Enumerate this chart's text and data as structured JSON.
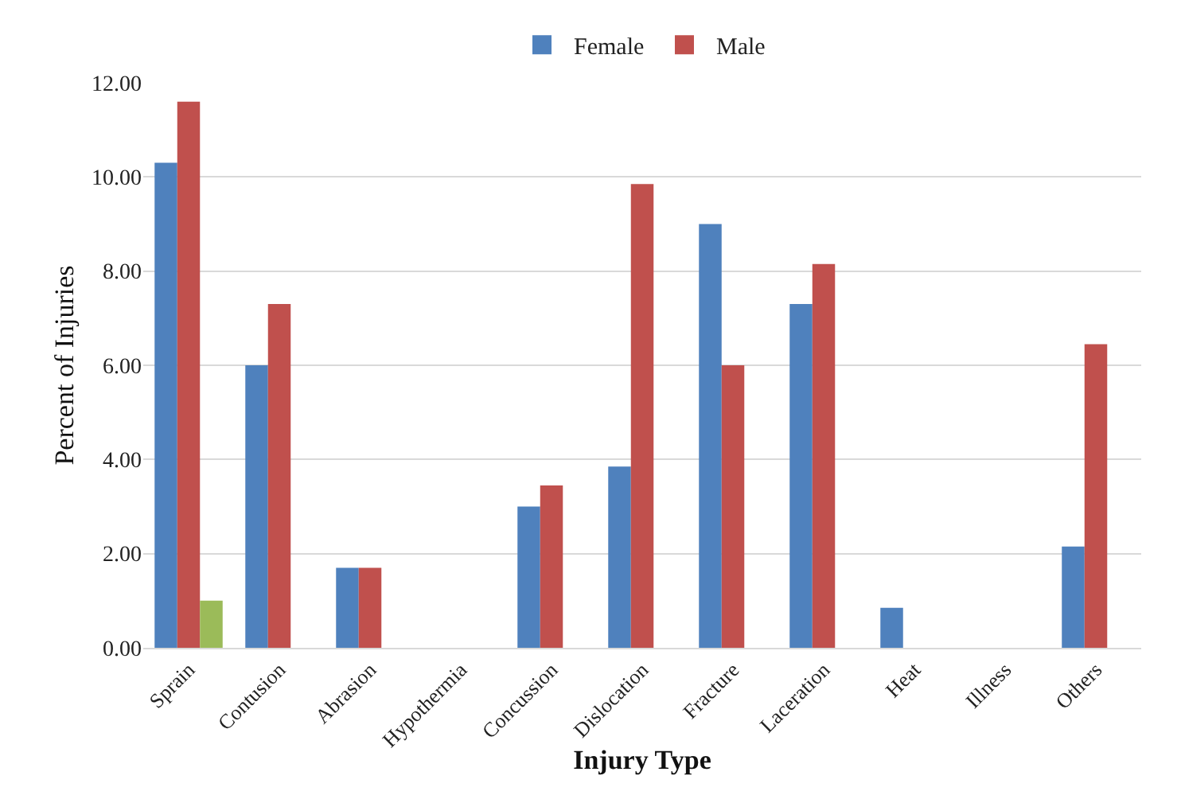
{
  "chart_data": {
    "type": "bar",
    "xlabel": "Injury Type",
    "ylabel": "Percent of Injuries",
    "categories": [
      "Sprain",
      "Contusion",
      "Abrasion",
      "Hypothermia",
      "Concussion",
      "Dislocation",
      "Fracture",
      "Laceration",
      "Heat",
      "Illness",
      "Others"
    ],
    "series": [
      {
        "name": "Female",
        "color": "#4f81bd",
        "values": [
          10.3,
          6.0,
          1.7,
          0,
          3.0,
          3.85,
          9.0,
          7.3,
          0.85,
          0,
          2.15
        ]
      },
      {
        "name": "Male",
        "color": "#c0504d",
        "values": [
          11.6,
          7.3,
          1.7,
          0,
          3.45,
          9.85,
          6.0,
          8.15,
          0,
          0,
          6.45
        ]
      },
      {
        "color": "#9bbb59",
        "values": [
          1.0,
          null,
          null,
          null,
          null,
          null,
          null,
          null,
          null,
          null,
          null
        ]
      }
    ],
    "ylim": [
      0,
      12
    ],
    "yticks": [
      {
        "value": 0,
        "label": "0.00"
      },
      {
        "value": 2,
        "label": "2.00"
      },
      {
        "value": 4,
        "label": "4.00"
      },
      {
        "value": 6,
        "label": "6.00"
      },
      {
        "value": 8,
        "label": "8.00"
      },
      {
        "value": 10,
        "label": "10.00"
      },
      {
        "value": 12,
        "label": "12.00"
      }
    ],
    "grid": "y",
    "legend": "top"
  }
}
